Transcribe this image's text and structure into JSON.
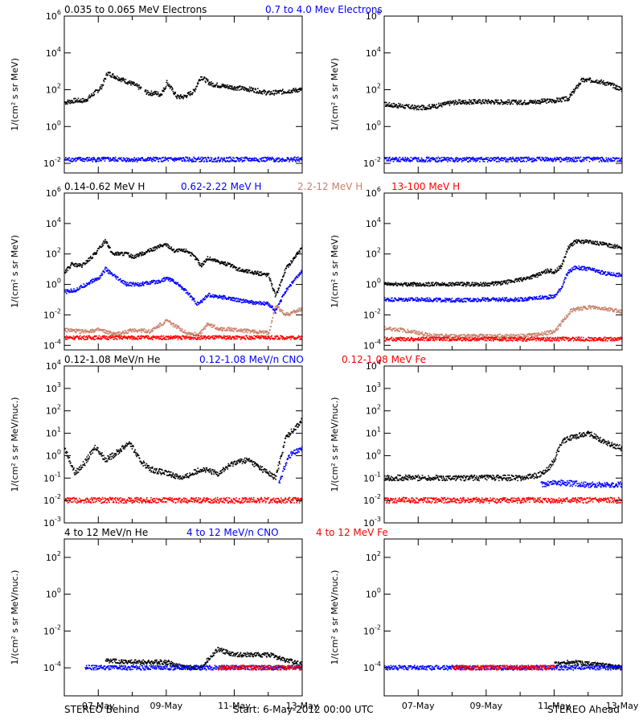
{
  "colors": {
    "he_or_low": "#000000",
    "mid": "#0000ff",
    "tan": "#c8826a",
    "high": "#ff0000",
    "axis": "#000000"
  },
  "footer": {
    "left": "STEREO Behind",
    "center": "Start:  6-May-2012 00:00 UTC",
    "right": "STEREO Ahead"
  },
  "chart_data": [
    {
      "type": "scatter",
      "row": 1,
      "legend": [
        {
          "text": "0.035 to 0.065 MeV Electrons",
          "color": "#000000"
        },
        {
          "text": "0.7 to 4.0 Mev Electrons",
          "color": "#0000ff"
        }
      ],
      "ylabel": "1/(cm² s sr MeV)",
      "ylog": true,
      "ylim": [
        0.003,
        1000000
      ],
      "yticks": [
        {
          "e": 6,
          "label": "10^6"
        },
        {
          "e": 4,
          "label": "10^4"
        },
        {
          "e": 2,
          "label": "10^2"
        },
        {
          "e": 0,
          "label": "10^0"
        },
        {
          "e": -2,
          "label": "10^-2"
        }
      ],
      "x_unit": "days since 6-May-2012 00:00 UTC",
      "xlim": [
        0,
        7
      ],
      "xticks": [
        {
          "x": 1,
          "label": "07-May"
        },
        {
          "x": 3,
          "label": "09-May"
        },
        {
          "x": 5,
          "label": "11-May"
        },
        {
          "x": 7,
          "label": "13-May"
        }
      ],
      "panels": [
        {
          "spacecraft": "STEREO Behind",
          "series": [
            {
              "name": "0.035 to 0.065 MeV Electrons",
              "color": "#000000",
              "gaps": [
                [
                  2.25,
                  2.35
                ]
              ],
              "x": [
                0,
                0.3,
                0.6,
                0.8,
                1.0,
                1.1,
                1.25,
                1.6,
                2.0,
                2.2,
                2.45,
                2.7,
                2.8,
                2.95,
                3.0,
                3.3,
                3.5,
                3.8,
                4.0,
                4.3,
                4.6,
                5.0,
                5.5,
                6.0,
                6.5,
                7.0
              ],
              "log10y": [
                1.3,
                1.4,
                1.4,
                1.7,
                2.0,
                2.2,
                2.9,
                2.6,
                2.3,
                2.1,
                1.8,
                1.8,
                1.7,
                2.1,
                2.4,
                1.6,
                1.6,
                1.9,
                2.7,
                2.3,
                2.2,
                2.1,
                2.0,
                1.8,
                1.9,
                2.0
              ]
            },
            {
              "name": "0.7 to 4.0 Mev Electrons",
              "color": "#0000ff",
              "x": [
                0,
                7
              ],
              "log10y": [
                -1.8,
                -1.8
              ]
            }
          ]
        },
        {
          "spacecraft": "STEREO Ahead",
          "series": [
            {
              "name": "0.035 to 0.065 MeV Electrons",
              "color": "#000000",
              "x": [
                0,
                1,
                1.5,
                2,
                3,
                4,
                5,
                5.4,
                5.8,
                6.2,
                6.6,
                7
              ],
              "log10y": [
                1.2,
                1.0,
                1.1,
                1.3,
                1.35,
                1.3,
                1.4,
                1.5,
                2.5,
                2.5,
                2.3,
                2.0
              ]
            },
            {
              "name": "0.7 to 4.0 Mev Electrons",
              "color": "#0000ff",
              "x": [
                0,
                7
              ],
              "log10y": [
                -1.8,
                -1.8
              ]
            }
          ]
        }
      ]
    },
    {
      "type": "scatter",
      "row": 2,
      "legend": [
        {
          "text": "0.14-0.62 MeV H",
          "color": "#000000"
        },
        {
          "text": "0.62-2.22 MeV H",
          "color": "#0000ff"
        },
        {
          "text": "2.2-12 MeV H",
          "color": "#c8826a"
        },
        {
          "text": "13-100 MeV H",
          "color": "#ff0000"
        }
      ],
      "ylabel": "1/(cm² s sr MeV)",
      "ylog": true,
      "ylim": [
        5e-05,
        1000000
      ],
      "yticks": [
        {
          "e": 6,
          "label": "10^6"
        },
        {
          "e": 4,
          "label": "10^4"
        },
        {
          "e": 2,
          "label": "10^2"
        },
        {
          "e": 0,
          "label": "10^0"
        },
        {
          "e": -2,
          "label": "10^-2"
        },
        {
          "e": -4,
          "label": "10^-4"
        }
      ],
      "x_unit": "days since 6-May-2012 00:00 UTC",
      "xlim": [
        0,
        7
      ],
      "xticks": [
        {
          "x": 1,
          "label": "07-May"
        },
        {
          "x": 3,
          "label": "09-May"
        },
        {
          "x": 5,
          "label": "11-May"
        },
        {
          "x": 7,
          "label": "13-May"
        }
      ],
      "panels": [
        {
          "spacecraft": "STEREO Behind",
          "series": [
            {
              "name": "0.14-0.62 MeV H",
              "color": "#000000",
              "x": [
                0,
                0.2,
                0.5,
                0.8,
                1.0,
                1.2,
                1.4,
                1.8,
                2.0,
                2.5,
                2.8,
                3.0,
                3.2,
                3.6,
                3.9,
                4.0,
                4.2,
                4.5,
                4.8,
                5.2,
                5.5,
                6.0,
                6.2,
                6.5,
                7.0
              ],
              "log10y": [
                0.8,
                1.3,
                1.2,
                1.8,
                2.3,
                2.9,
                2.0,
                2.0,
                1.8,
                2.2,
                2.5,
                2.6,
                2.2,
                2.2,
                1.6,
                1.2,
                1.7,
                1.5,
                1.3,
                0.9,
                0.8,
                0.6,
                -0.8,
                1.0,
                2.5
              ]
            },
            {
              "name": "0.62-2.22 MeV H",
              "color": "#0000ff",
              "x": [
                0,
                0.3,
                0.8,
                1.0,
                1.2,
                1.4,
                1.8,
                2.2,
                2.8,
                3.0,
                3.2,
                3.5,
                3.9,
                4.0,
                4.2,
                4.5,
                5.0,
                5.5,
                6.0,
                6.2,
                6.5,
                7.0
              ],
              "log10y": [
                -0.5,
                -0.4,
                0.2,
                0.4,
                1.0,
                0.6,
                0.0,
                0.0,
                0.2,
                0.4,
                0.2,
                -0.3,
                -1.3,
                -1.2,
                -0.7,
                -0.8,
                -1.0,
                -1.2,
                -1.3,
                -1.8,
                -0.4,
                0.9
              ]
            },
            {
              "name": "2.2-12 MeV H",
              "color": "#c8826a",
              "x": [
                0,
                0.5,
                1.0,
                1.5,
                2.0,
                2.5,
                3.0,
                3.3,
                3.6,
                3.9,
                4.0,
                4.2,
                4.5,
                5.0,
                5.5,
                6.0,
                6.2,
                6.5,
                7.0
              ],
              "log10y": [
                -3.0,
                -3.1,
                -3.0,
                -3.3,
                -3.0,
                -3.1,
                -2.4,
                -2.8,
                -3.2,
                -3.3,
                -3.2,
                -2.6,
                -2.9,
                -3.0,
                -3.1,
                -3.2,
                -1.4,
                -2.0,
                -1.6
              ]
            },
            {
              "name": "13-100 MeV H",
              "color": "#ff0000",
              "x": [
                0,
                7
              ],
              "log10y": [
                -3.5,
                -3.5
              ]
            }
          ]
        },
        {
          "spacecraft": "STEREO Ahead",
          "series": [
            {
              "name": "0.14-0.62 MeV H",
              "color": "#000000",
              "x": [
                0,
                1,
                2,
                3,
                3.5,
                4,
                4.5,
                4.8,
                5.0,
                5.2,
                5.4,
                5.6,
                6.0,
                6.5,
                7.0
              ],
              "log10y": [
                0.0,
                0.0,
                0.0,
                0.0,
                0.1,
                0.3,
                0.6,
                0.9,
                0.8,
                1.2,
                2.4,
                2.8,
                2.8,
                2.6,
                2.4
              ]
            },
            {
              "name": "0.62-2.22 MeV H",
              "color": "#0000ff",
              "x": [
                0,
                1,
                2,
                3,
                4,
                4.5,
                5.0,
                5.2,
                5.4,
                5.6,
                6.0,
                6.5,
                7.0
              ],
              "log10y": [
                -1.0,
                -1.0,
                -1.05,
                -1.0,
                -1.0,
                -0.9,
                -0.8,
                -0.2,
                0.8,
                1.1,
                1.0,
                0.7,
                0.6
              ]
            },
            {
              "name": "2.2-12 MeV H",
              "color": "#c8826a",
              "x": [
                0,
                0.5,
                1.0,
                1.5,
                2.0,
                3.0,
                4.0,
                4.5,
                5.0,
                5.5,
                6.0,
                6.5,
                7.0
              ],
              "log10y": [
                -2.9,
                -3.0,
                -3.2,
                -3.4,
                -3.4,
                -3.4,
                -3.4,
                -3.3,
                -3.1,
                -1.7,
                -1.5,
                -1.6,
                -1.8
              ]
            },
            {
              "name": "13-100 MeV H",
              "color": "#ff0000",
              "x": [
                0,
                7
              ],
              "log10y": [
                -3.6,
                -3.6
              ]
            }
          ]
        }
      ]
    },
    {
      "type": "scatter",
      "row": 3,
      "legend": [
        {
          "text": "0.12-1.08 MeV/n He",
          "color": "#000000"
        },
        {
          "text": "0.12-1.08 MeV/n CNO",
          "color": "#0000ff"
        },
        {
          "text": "0.12-1.08 MeV Fe",
          "color": "#ff0000"
        }
      ],
      "ylabel": "1/(cm² s sr MeV/nuc.)",
      "ylog": true,
      "ylim": [
        0.001,
        10000
      ],
      "yticks": [
        {
          "e": 4,
          "label": "10^4"
        },
        {
          "e": 3,
          "label": "10^3"
        },
        {
          "e": 2,
          "label": "10^2"
        },
        {
          "e": 1,
          "label": "10^1"
        },
        {
          "e": 0,
          "label": "10^0"
        },
        {
          "e": -1,
          "label": "10^-1"
        },
        {
          "e": -2,
          "label": "10^-2"
        },
        {
          "e": -3,
          "label": "10^-3"
        }
      ],
      "x_unit": "days since 6-May-2012 00:00 UTC",
      "xlim": [
        0,
        7
      ],
      "xticks": [
        {
          "x": 1,
          "label": "07-May"
        },
        {
          "x": 3,
          "label": "09-May"
        },
        {
          "x": 5,
          "label": "11-May"
        },
        {
          "x": 7,
          "label": "13-May"
        }
      ],
      "panels": [
        {
          "spacecraft": "STEREO Behind",
          "series": [
            {
              "name": "0.12-1.08 MeV/n He",
              "color": "#000000",
              "x": [
                0,
                0.3,
                0.6,
                0.9,
                1.2,
                1.6,
                1.9,
                2.2,
                2.5,
                3.0,
                3.5,
                4.0,
                4.5,
                5.0,
                5.4,
                5.8,
                6.2,
                6.5,
                7.0
              ],
              "log10y": [
                0.3,
                -0.8,
                -0.3,
                0.4,
                -0.2,
                0.2,
                0.6,
                -0.2,
                -0.6,
                -0.8,
                -1.0,
                -0.6,
                -0.8,
                -0.3,
                -0.2,
                -0.6,
                -1.0,
                0.8,
                1.6
              ]
            },
            {
              "name": "0.12-1.08 MeV/n CNO",
              "color": "#0000ff",
              "x": [
                6.3,
                6.6,
                7.0
              ],
              "log10y": [
                -1.2,
                0.0,
                0.3
              ]
            },
            {
              "name": "0.12-1.08 MeV Fe",
              "color": "#ff0000",
              "x": [
                0,
                7
              ],
              "log10y": [
                -2.0,
                -2.0
              ]
            }
          ]
        },
        {
          "spacecraft": "STEREO Ahead",
          "series": [
            {
              "name": "0.12-1.08 MeV/n He",
              "color": "#000000",
              "x": [
                0,
                1,
                2,
                3,
                4,
                4.5,
                4.8,
                5.0,
                5.2,
                5.5,
                6.0,
                6.5,
                7.0
              ],
              "log10y": [
                -1.0,
                -1.0,
                -1.0,
                -1.0,
                -1.0,
                -0.9,
                -0.6,
                -0.2,
                0.6,
                0.8,
                1.0,
                0.6,
                0.3
              ]
            },
            {
              "name": "0.12-1.08 MeV/n CNO",
              "color": "#0000ff",
              "x": [
                4.6,
                5.0,
                6.0,
                7.0
              ],
              "log10y": [
                -1.3,
                -1.2,
                -1.3,
                -1.3
              ]
            },
            {
              "name": "0.12-1.08 MeV Fe",
              "color": "#ff0000",
              "x": [
                0,
                7
              ],
              "log10y": [
                -2.0,
                -2.0
              ]
            }
          ]
        }
      ]
    },
    {
      "type": "scatter",
      "row": 4,
      "legend": [
        {
          "text": "4 to 12 MeV/n He",
          "color": "#000000"
        },
        {
          "text": "4 to 12 MeV/n CNO",
          "color": "#0000ff"
        },
        {
          "text": "4 to 12 MeV Fe",
          "color": "#ff0000"
        }
      ],
      "ylabel": "1/(cm² s sr MeV/nuc.)",
      "ylog": true,
      "ylim": [
        3e-06,
        1000
      ],
      "yticks": [
        {
          "e": 2,
          "label": "10^2"
        },
        {
          "e": 0,
          "label": "10^0"
        },
        {
          "e": -2,
          "label": "10^-2"
        },
        {
          "e": -4,
          "label": "10^-4"
        }
      ],
      "x_unit": "days since 6-May-2012 00:00 UTC",
      "xlim": [
        0,
        7
      ],
      "xticks": [
        {
          "x": 1,
          "label": "07-May"
        },
        {
          "x": 3,
          "label": "09-May"
        },
        {
          "x": 5,
          "label": "11-May"
        },
        {
          "x": 7,
          "label": "13-May"
        }
      ],
      "panels": [
        {
          "spacecraft": "STEREO Behind",
          "series": [
            {
              "name": "4 to 12 MeV/n He",
              "color": "#000000",
              "x": [
                1.2,
                2.0,
                3.0,
                3.5,
                4.0,
                4.5,
                5.0,
                6.0,
                6.5,
                7.0
              ],
              "log10y": [
                -3.6,
                -3.7,
                -3.7,
                -4.0,
                -4.0,
                -3.0,
                -3.3,
                -3.3,
                -3.6,
                -3.8
              ]
            },
            {
              "name": "4 to 12 MeV/n CNO",
              "color": "#0000ff",
              "x": [
                0.6,
                7
              ],
              "log10y": [
                -4.0,
                -4.0
              ]
            },
            {
              "name": "4 to 12 MeV Fe",
              "color": "#ff0000",
              "x": [
                4.5,
                7
              ],
              "log10y": [
                -4.0,
                -4.0
              ]
            }
          ]
        },
        {
          "spacecraft": "STEREO Ahead",
          "series": [
            {
              "name": "4 to 12 MeV/n He",
              "color": "#000000",
              "x": [
                5.0,
                5.5,
                6.0,
                7.0
              ],
              "log10y": [
                -3.8,
                -3.7,
                -3.8,
                -4.0
              ]
            },
            {
              "name": "4 to 12 MeV/n CNO",
              "color": "#0000ff",
              "x": [
                0,
                7
              ],
              "log10y": [
                -4.0,
                -4.0
              ]
            },
            {
              "name": "4 to 12 MeV Fe",
              "color": "#ff0000",
              "x": [
                2.0,
                5.0
              ],
              "log10y": [
                -4.0,
                -4.0
              ]
            }
          ]
        }
      ]
    }
  ]
}
